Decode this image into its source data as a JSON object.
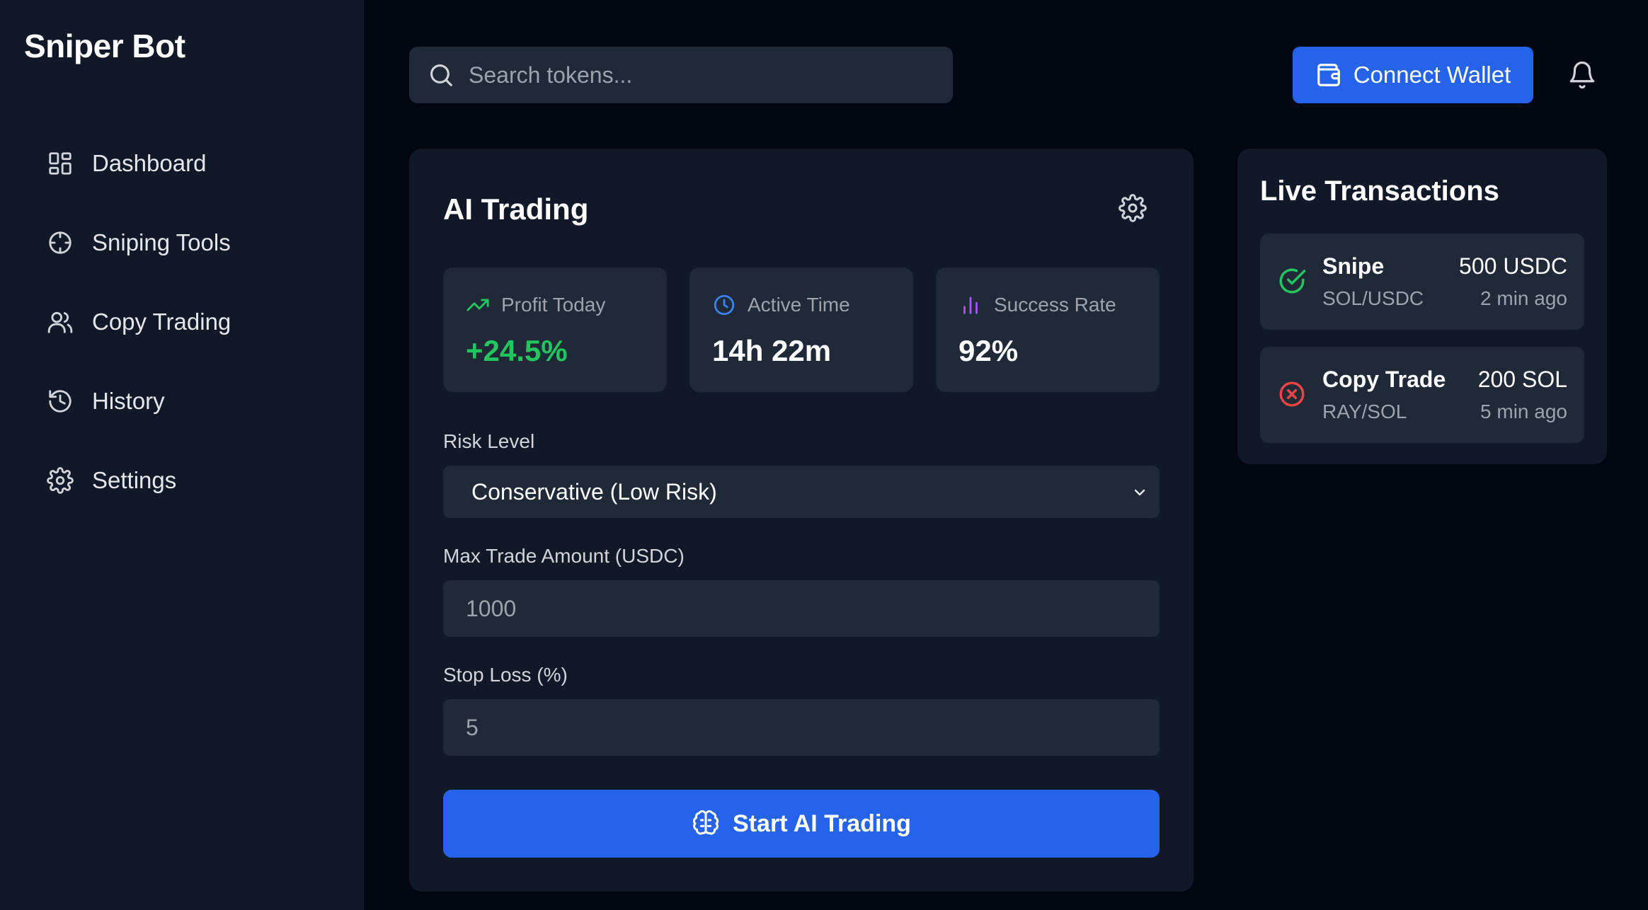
{
  "app": {
    "title": "Sniper Bot"
  },
  "sidebar": {
    "items": [
      {
        "label": "Dashboard",
        "icon": "dashboard-icon"
      },
      {
        "label": "Sniping Tools",
        "icon": "crosshair-icon"
      },
      {
        "label": "Copy Trading",
        "icon": "users-icon"
      },
      {
        "label": "History",
        "icon": "history-icon"
      },
      {
        "label": "Settings",
        "icon": "gear-icon"
      }
    ]
  },
  "header": {
    "search_placeholder": "Search tokens...",
    "connect_label": "Connect Wallet"
  },
  "ai_trading": {
    "title": "AI Trading",
    "stats": [
      {
        "label": "Profit Today",
        "value": "+24.5%",
        "icon": "trending-up-icon",
        "color": "#22c55e"
      },
      {
        "label": "Active Time",
        "value": "14h 22m",
        "icon": "clock-icon",
        "color": "#3b82f6"
      },
      {
        "label": "Success Rate",
        "value": "92%",
        "icon": "bar-chart-icon",
        "color": "#a855f7"
      }
    ],
    "risk": {
      "label": "Risk Level",
      "value": "Conservative (Low Risk)"
    },
    "max_trade": {
      "label": "Max Trade Amount (USDC)",
      "placeholder": "1000"
    },
    "stop_loss": {
      "label": "Stop Loss (%)",
      "placeholder": "5"
    },
    "start_label": "Start AI Trading"
  },
  "live": {
    "title": "Live Transactions",
    "items": [
      {
        "type": "Snipe",
        "pair": "SOL/USDC",
        "amount": "500 USDC",
        "time": "2 min ago",
        "status": "success",
        "color": "#22c55e"
      },
      {
        "type": "Copy Trade",
        "pair": "RAY/SOL",
        "amount": "200 SOL",
        "time": "5 min ago",
        "status": "failed",
        "color": "#ef4444"
      }
    ]
  },
  "colors": {
    "background": "#030712",
    "panel": "#111827",
    "card": "#1f2937",
    "accent": "#2563eb"
  }
}
